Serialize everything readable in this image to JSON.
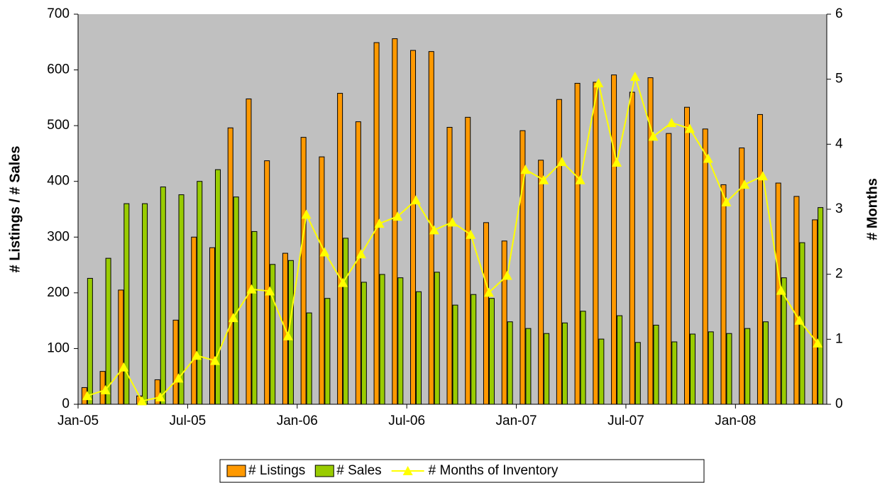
{
  "chart_data": {
    "type": "bar-line",
    "y_label": "# Listings / # Sales",
    "y2_label": "# Months",
    "categories": [
      "Jan-05",
      null,
      null,
      null,
      null,
      null,
      "Jul-05",
      null,
      null,
      null,
      null,
      null,
      "Jan-06",
      null,
      null,
      null,
      null,
      null,
      "Jul-06",
      null,
      null,
      null,
      null,
      null,
      "Jan-07",
      null,
      null,
      null,
      null,
      null,
      "Jul-07",
      null,
      null,
      null,
      null,
      null,
      "Jan-08",
      null,
      null,
      null,
      null
    ],
    "series": [
      {
        "name": "# Listings",
        "type": "bar",
        "color": "#ff9900",
        "values": [
          30,
          59,
          205,
          15,
          44,
          151,
          300,
          281,
          496,
          548,
          437,
          271,
          479,
          444,
          558,
          507,
          649,
          656,
          635,
          633,
          497,
          515,
          326,
          293,
          491,
          438,
          547,
          576,
          578,
          591,
          560,
          586,
          486,
          533,
          494,
          394,
          460,
          520,
          397,
          373,
          331
        ]
      },
      {
        "name": "# Sales",
        "type": "bar",
        "color": "#99cc00",
        "values": [
          226,
          262,
          360,
          360,
          390,
          376,
          400,
          421,
          372,
          310,
          251,
          258,
          164,
          190,
          298,
          219,
          233,
          227,
          202,
          237,
          178,
          197,
          190,
          148,
          136,
          127,
          146,
          167,
          117,
          159,
          111,
          142,
          112,
          126,
          130,
          127,
          136,
          148,
          227,
          290,
          353
        ]
      },
      {
        "name": "# Months of Inventory",
        "type": "line",
        "axis": "y2",
        "color": "#ffff00",
        "values": [
          0.13,
          0.22,
          0.57,
          0.05,
          0.11,
          0.4,
          0.75,
          0.67,
          1.33,
          1.77,
          1.74,
          1.05,
          2.92,
          2.34,
          1.87,
          2.31,
          2.78,
          2.89,
          3.14,
          2.68,
          2.8,
          2.61,
          1.72,
          1.98,
          3.61,
          3.45,
          3.73,
          3.45,
          4.94,
          3.72,
          5.04,
          4.12,
          4.33,
          4.24,
          3.78,
          3.11,
          3.38,
          3.51,
          1.75,
          1.29,
          0.94
        ]
      }
    ],
    "ylim": [
      0,
      700
    ],
    "yticks": [
      0,
      100,
      200,
      300,
      400,
      500,
      600,
      700
    ],
    "y2lim": [
      0,
      6
    ],
    "y2ticks": [
      0,
      1,
      2,
      3,
      4,
      5,
      6
    ],
    "legend": "bottom"
  }
}
